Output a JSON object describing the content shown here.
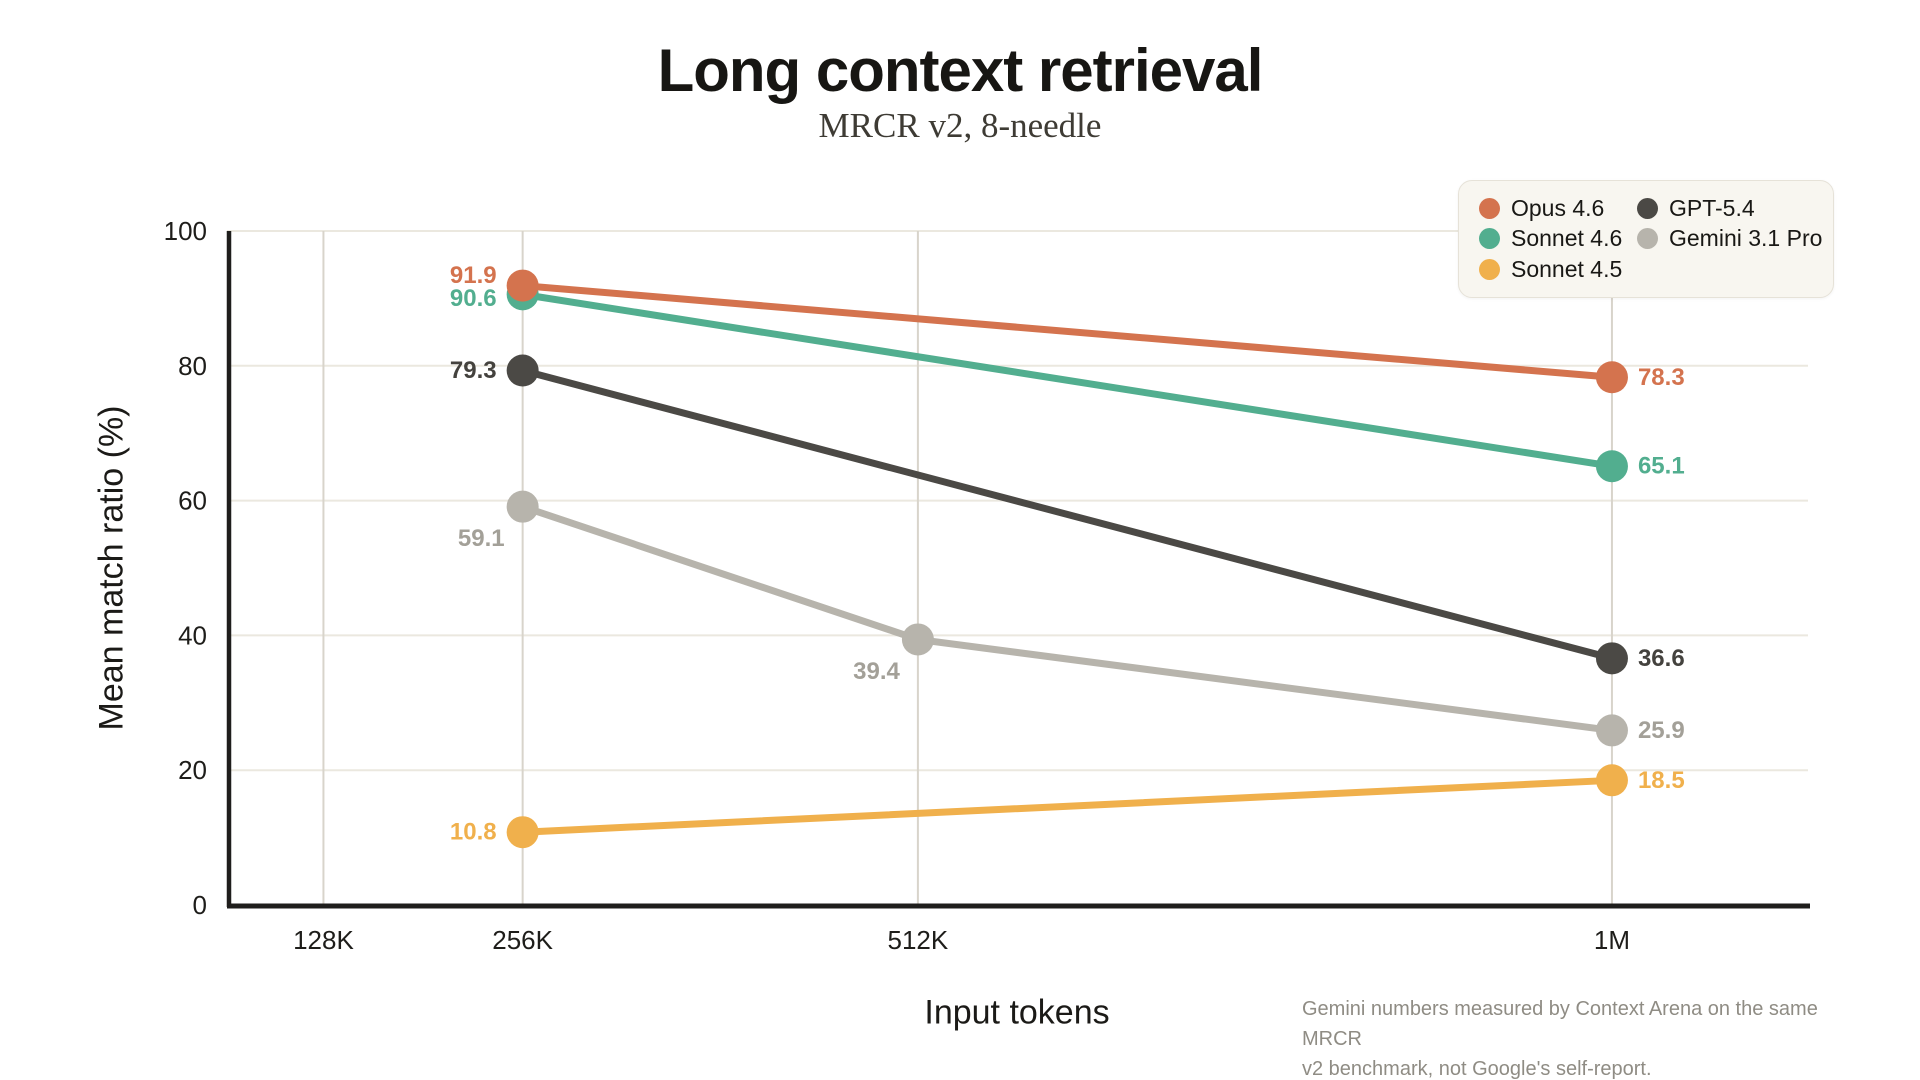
{
  "header": {
    "title": "Long context retrieval",
    "subtitle": "MRCR v2, 8-needle"
  },
  "chart_data": {
    "type": "line",
    "title": "Long context retrieval",
    "subtitle": "MRCR v2, 8-needle",
    "xlabel": "Input tokens",
    "ylabel": "Mean match ratio (%)",
    "categories": [
      "128K",
      "256K",
      "512K",
      "1M"
    ],
    "x_positions_pct": [
      6.1,
      18.7,
      43.7,
      87.6
    ],
    "ylim": [
      0,
      100
    ],
    "y_ticks": [
      0,
      20,
      40,
      60,
      80,
      100
    ],
    "grid": {
      "horizontal": true,
      "vertical": true,
      "h_color": "#EBE8DF",
      "v_color": "#D8D4CB",
      "axis_color": "#1F1E1C"
    },
    "legend": {
      "position": "top-right",
      "columns": [
        [
          0,
          1,
          2
        ],
        [
          3,
          4
        ]
      ]
    },
    "series": [
      {
        "name": "Opus 4.6",
        "color": "#D4734E",
        "points": [
          {
            "category": "256K",
            "value": 91.9,
            "label_side": "left",
            "label_dy": -10
          },
          {
            "category": "1M",
            "value": 78.3,
            "label_side": "right"
          }
        ]
      },
      {
        "name": "Sonnet 4.6",
        "color": "#52AE8F",
        "points": [
          {
            "category": "256K",
            "value": 90.6,
            "label_side": "left",
            "label_dy": 4
          },
          {
            "category": "1M",
            "value": 65.1,
            "label_side": "right"
          }
        ]
      },
      {
        "name": "Sonnet 4.5",
        "color": "#F0B04C",
        "points": [
          {
            "category": "256K",
            "value": 10.8,
            "label_side": "left"
          },
          {
            "category": "1M",
            "value": 18.5,
            "label_side": "right"
          }
        ]
      },
      {
        "name": "GPT-5.4",
        "color": "#4B4945",
        "label_color": "#44423E",
        "points": [
          {
            "category": "256K",
            "value": 79.3,
            "label_side": "left"
          },
          {
            "category": "1M",
            "value": 36.6,
            "label_side": "right"
          }
        ]
      },
      {
        "name": "Gemini 3.1 Pro",
        "color": "#B7B4AC",
        "label_color": "#A3A098",
        "points": [
          {
            "category": "256K",
            "value": 59.1,
            "label_side": "below-left"
          },
          {
            "category": "512K",
            "value": 39.4,
            "label_side": "below-left"
          },
          {
            "category": "1M",
            "value": 25.9,
            "label_side": "right"
          }
        ]
      }
    ]
  },
  "footnote": {
    "line1": "Gemini numbers measured by Context Arena on the same MRCR",
    "line2": "v2 benchmark, not Google's self-report."
  }
}
